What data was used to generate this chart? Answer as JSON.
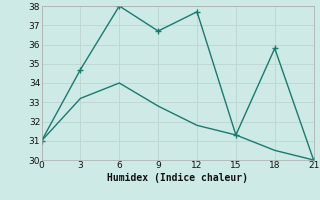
{
  "x": [
    0,
    3,
    6,
    9,
    12,
    15,
    18,
    21
  ],
  "y_main": [
    31,
    34.7,
    38,
    36.7,
    37.7,
    31.3,
    35.8,
    30.0
  ],
  "y_trend": [
    31,
    33.2,
    34.0,
    32.8,
    31.8,
    31.3,
    30.5,
    30.0
  ],
  "line_color": "#1a7a6e",
  "bg_color": "#cdeae6",
  "grid_color": "#c0d8d4",
  "xlabel": "Humidex (Indice chaleur)",
  "xlim": [
    0,
    21
  ],
  "ylim": [
    30,
    38
  ],
  "xticks": [
    0,
    3,
    6,
    9,
    12,
    15,
    18,
    21
  ],
  "yticks": [
    30,
    31,
    32,
    33,
    34,
    35,
    36,
    37,
    38
  ],
  "marker": "+"
}
